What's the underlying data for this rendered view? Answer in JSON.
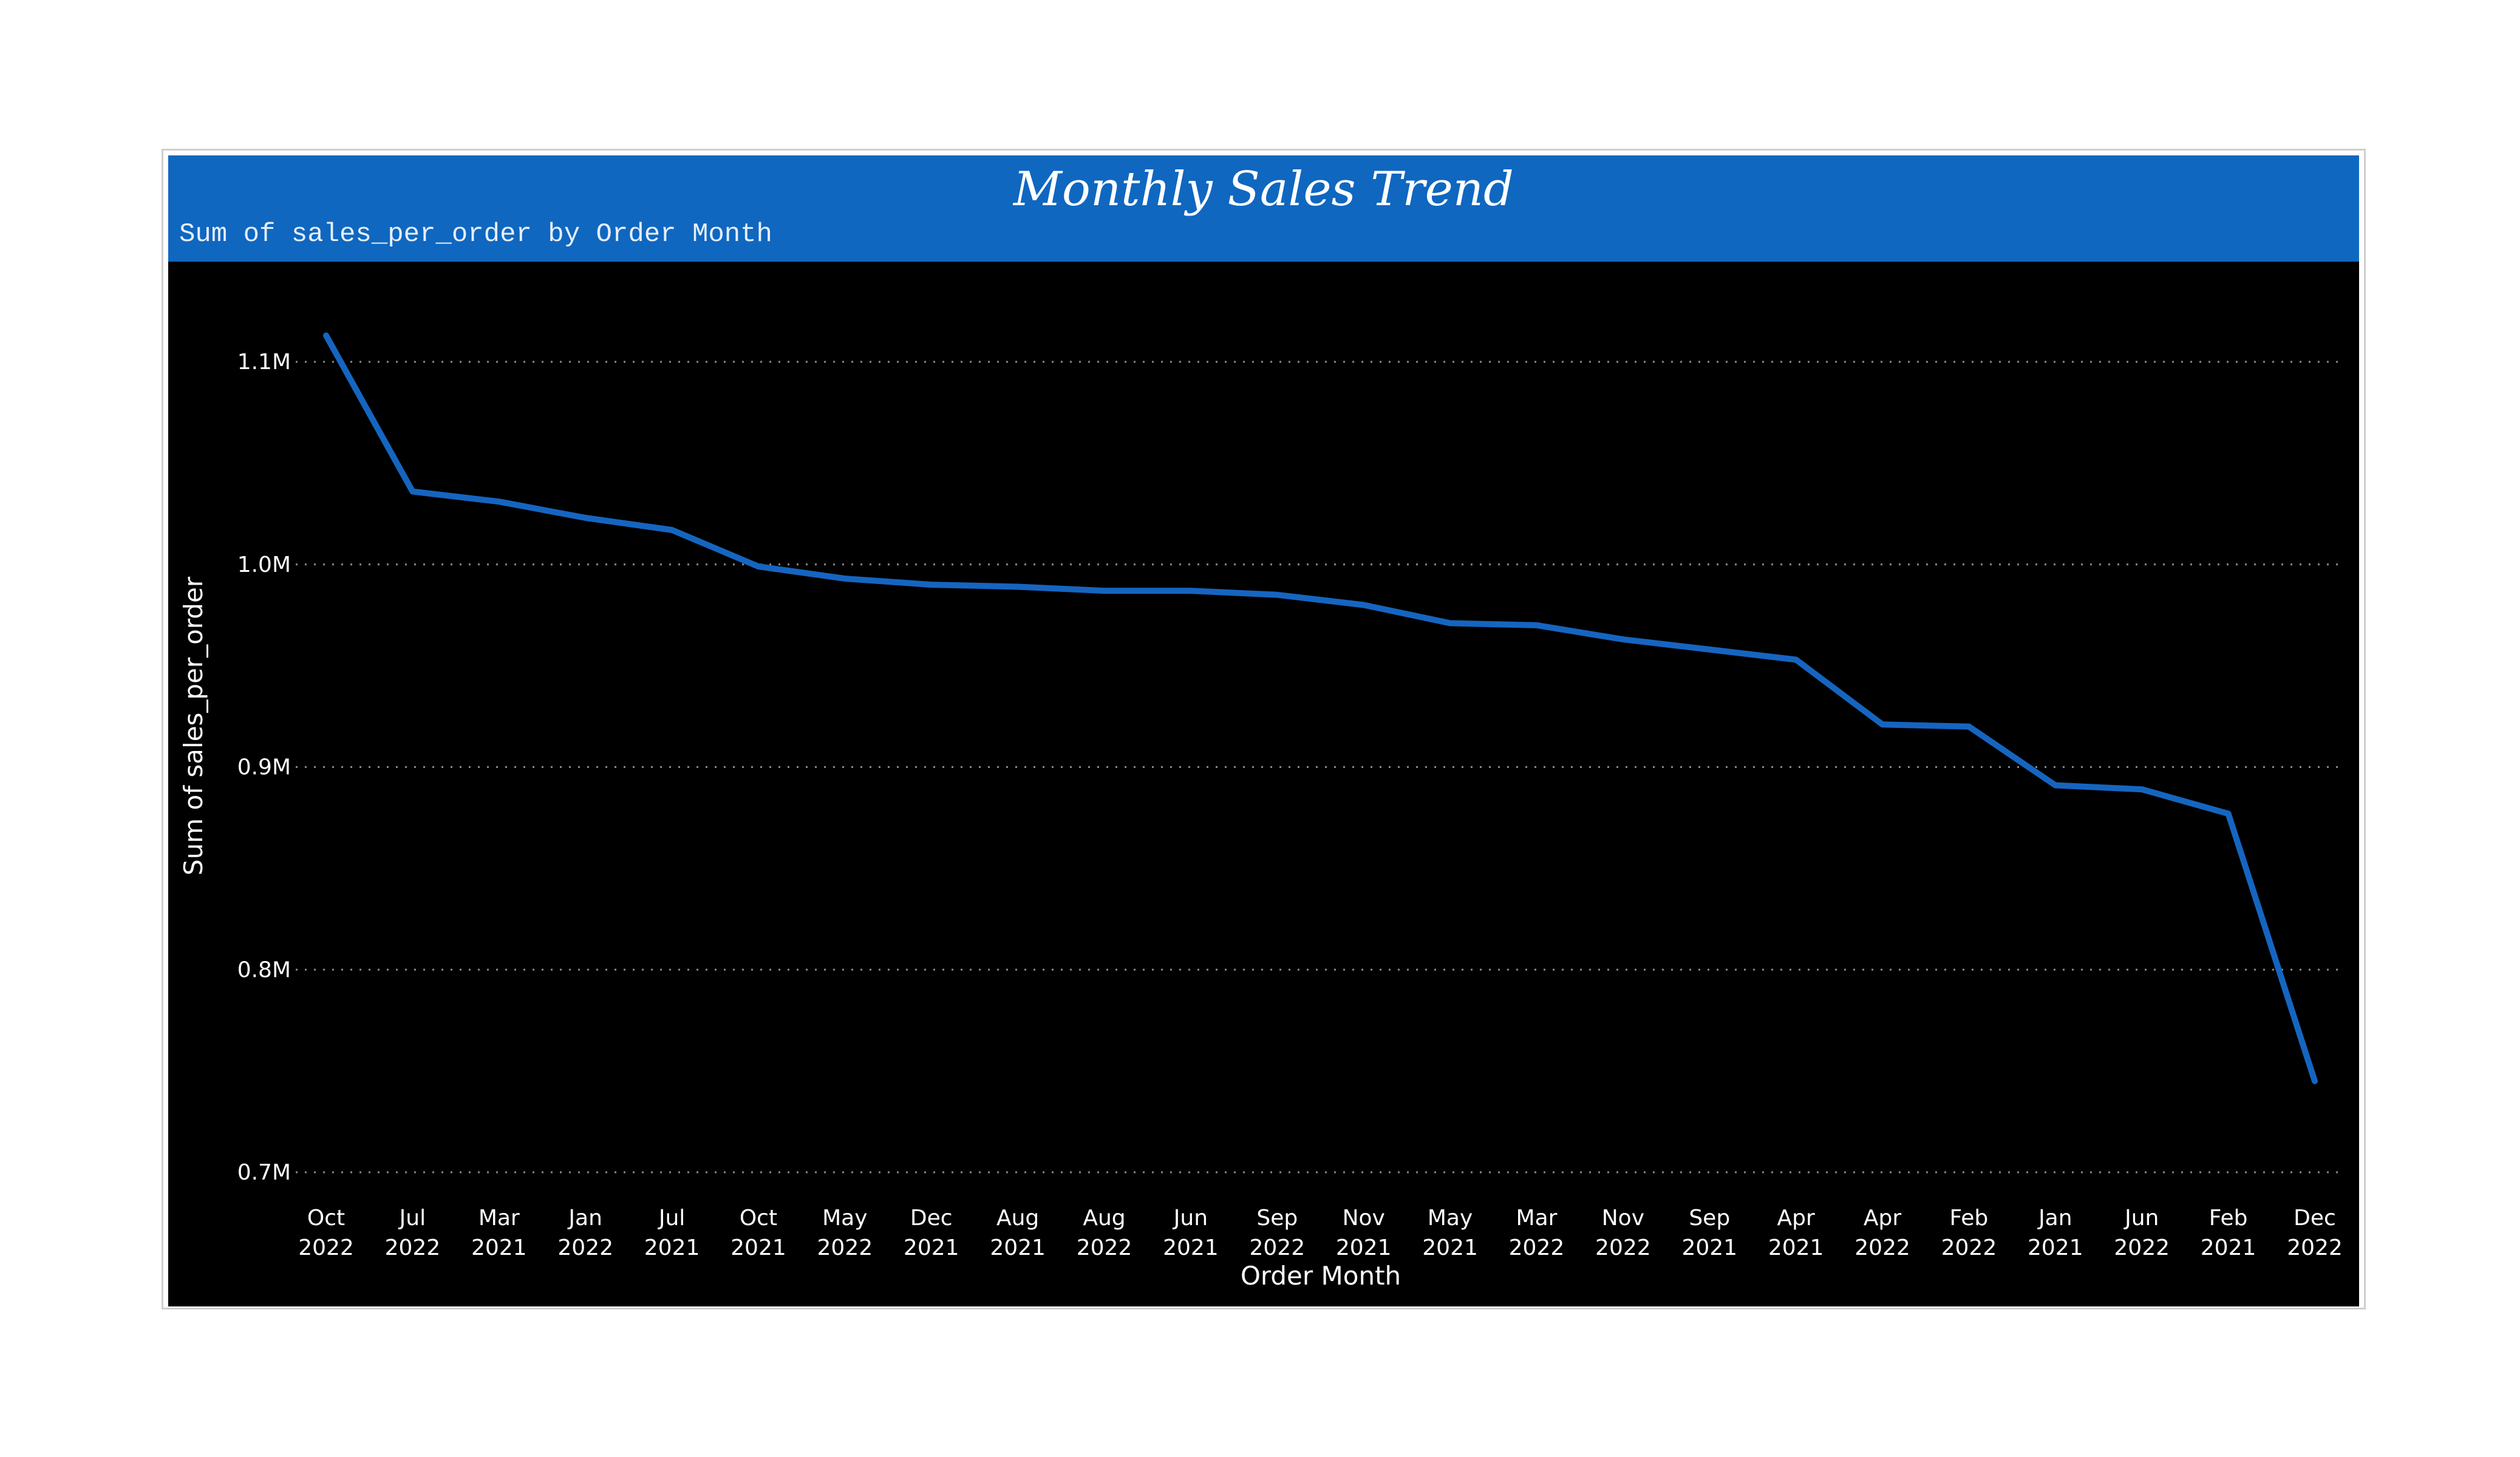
{
  "title": "Monthly Sales Trend",
  "subtitle": "Sum of sales_per_order by Order Month",
  "colors": {
    "header_background": "#0f67c0",
    "plot_background": "#000000",
    "series_line": "#1565c0",
    "text": "#ffffff"
  },
  "chart_data": {
    "type": "line",
    "title": "Monthly Sales Trend",
    "subtitle": "Sum of sales_per_order by Order Month",
    "xlabel": "Order Month",
    "ylabel": "Sum of sales_per_order",
    "ylim": [
      0.7,
      1.15
    ],
    "y_unit_label": "M",
    "y_ticks": [
      {
        "value": 0.7,
        "label": "0.7M"
      },
      {
        "value": 0.8,
        "label": "0.8M"
      },
      {
        "value": 0.9,
        "label": "0.9M"
      },
      {
        "value": 1.0,
        "label": "1.0M"
      },
      {
        "value": 1.1,
        "label": "1.1M"
      }
    ],
    "grid": true,
    "categories": [
      {
        "month": "Oct",
        "year": "2022"
      },
      {
        "month": "Jul",
        "year": "2022"
      },
      {
        "month": "Mar",
        "year": "2021"
      },
      {
        "month": "Jan",
        "year": "2022"
      },
      {
        "month": "Jul",
        "year": "2021"
      },
      {
        "month": "Oct",
        "year": "2021"
      },
      {
        "month": "May",
        "year": "2022"
      },
      {
        "month": "Dec",
        "year": "2021"
      },
      {
        "month": "Aug",
        "year": "2021"
      },
      {
        "month": "Aug",
        "year": "2022"
      },
      {
        "month": "Jun",
        "year": "2021"
      },
      {
        "month": "Sep",
        "year": "2022"
      },
      {
        "month": "Nov",
        "year": "2021"
      },
      {
        "month": "May",
        "year": "2021"
      },
      {
        "month": "Mar",
        "year": "2022"
      },
      {
        "month": "Nov",
        "year": "2022"
      },
      {
        "month": "Sep",
        "year": "2021"
      },
      {
        "month": "Apr",
        "year": "2021"
      },
      {
        "month": "Apr",
        "year": "2022"
      },
      {
        "month": "Feb",
        "year": "2022"
      },
      {
        "month": "Jan",
        "year": "2021"
      },
      {
        "month": "Jun",
        "year": "2022"
      },
      {
        "month": "Feb",
        "year": "2021"
      },
      {
        "month": "Dec",
        "year": "2022"
      }
    ],
    "series": [
      {
        "values": [
          1.113,
          1.036,
          1.031,
          1.023,
          1.017,
          0.999,
          0.993,
          0.99,
          0.989,
          0.987,
          0.987,
          0.985,
          0.98,
          0.971,
          0.97,
          0.963,
          0.958,
          0.953,
          0.921,
          0.92,
          0.891,
          0.889,
          0.877,
          0.745
        ]
      }
    ]
  }
}
